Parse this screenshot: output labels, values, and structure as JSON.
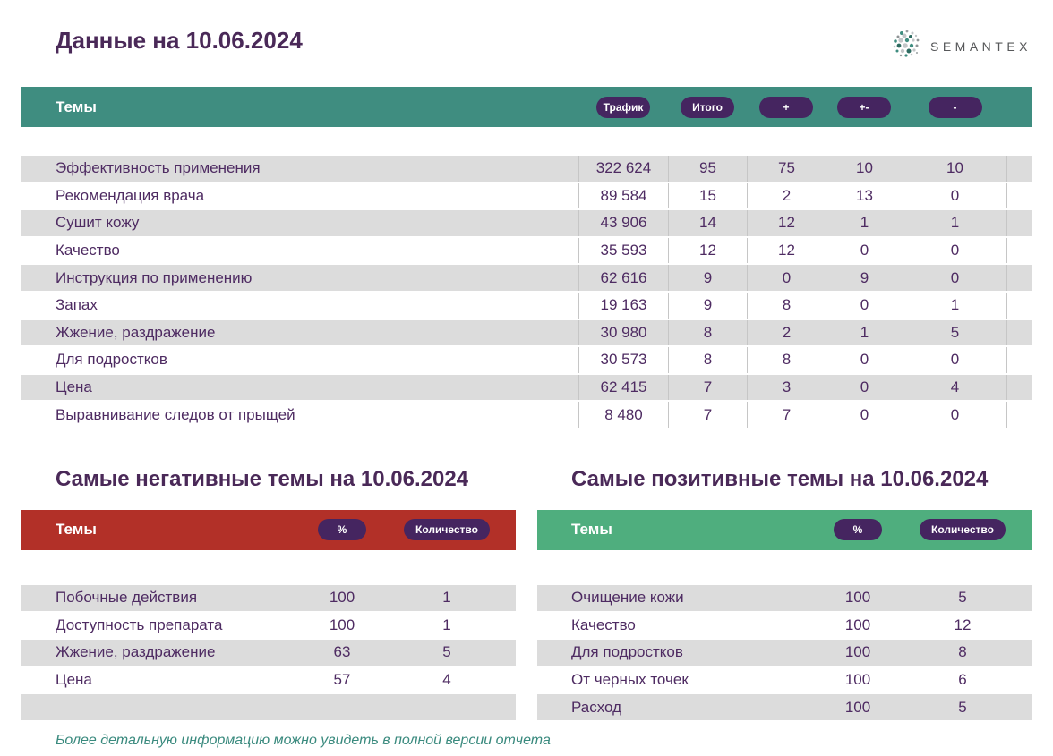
{
  "page": {
    "title": "Данные на 10.06.2024",
    "footer_note": "Более детальную информацию можно увидеть в полной версии отчета"
  },
  "logo": {
    "text": "SEMANTEX"
  },
  "main_table": {
    "header": "Темы",
    "columns": [
      "Трафик",
      "Итого",
      "+",
      "+-",
      "-"
    ],
    "rows": [
      {
        "topic": "Эффективность применения",
        "traffic": "322 624",
        "total": "95",
        "plus": "75",
        "mixed": "10",
        "minus": "10"
      },
      {
        "topic": "Рекомендация врача",
        "traffic": "89 584",
        "total": "15",
        "plus": "2",
        "mixed": "13",
        "minus": "0"
      },
      {
        "topic": "Сушит кожу",
        "traffic": "43 906",
        "total": "14",
        "plus": "12",
        "mixed": "1",
        "minus": "1"
      },
      {
        "topic": "Качество",
        "traffic": "35 593",
        "total": "12",
        "plus": "12",
        "mixed": "0",
        "minus": "0"
      },
      {
        "topic": "Инструкция по применению",
        "traffic": "62 616",
        "total": "9",
        "plus": "0",
        "mixed": "9",
        "minus": "0"
      },
      {
        "topic": "Запах",
        "traffic": "19 163",
        "total": "9",
        "plus": "8",
        "mixed": "0",
        "minus": "1"
      },
      {
        "topic": "Жжение, раздражение",
        "traffic": "30 980",
        "total": "8",
        "plus": "2",
        "mixed": "1",
        "minus": "5"
      },
      {
        "topic": "Для подростков",
        "traffic": "30 573",
        "total": "8",
        "plus": "8",
        "mixed": "0",
        "minus": "0"
      },
      {
        "topic": "Цена",
        "traffic": "62 415",
        "total": "7",
        "plus": "3",
        "mixed": "0",
        "minus": "4"
      },
      {
        "topic": "Выравнивание следов от прыщей",
        "traffic": "8 480",
        "total": "7",
        "plus": "7",
        "mixed": "0",
        "minus": "0"
      }
    ]
  },
  "negative_section": {
    "title": "Самые негативные темы на 10.06.2024",
    "header": "Темы",
    "columns": [
      "%",
      "Количество"
    ],
    "rows": [
      {
        "topic": "Побочные действия",
        "percent": "100",
        "count": "1"
      },
      {
        "topic": "Доступность препарата",
        "percent": "100",
        "count": "1"
      },
      {
        "topic": "Жжение, раздражение",
        "percent": "63",
        "count": "5"
      },
      {
        "topic": "Цена",
        "percent": "57",
        "count": "4"
      },
      {
        "topic": "",
        "percent": "",
        "count": ""
      }
    ]
  },
  "positive_section": {
    "title": "Самые позитивные темы на 10.06.2024",
    "header": "Темы",
    "columns": [
      "%",
      "Количество"
    ],
    "rows": [
      {
        "topic": "Очищение кожи",
        "percent": "100",
        "count": "5"
      },
      {
        "topic": "Качество",
        "percent": "100",
        "count": "12"
      },
      {
        "topic": "Для подростков",
        "percent": "100",
        "count": "8"
      },
      {
        "topic": "От черных точек",
        "percent": "100",
        "count": "6"
      },
      {
        "topic": "Расход",
        "percent": "100",
        "count": "5"
      }
    ]
  },
  "colors": {
    "teal_header": "#3f8d80",
    "positive_green": "#4fae7e",
    "negative_red": "#b23028",
    "pill_purple": "#452560",
    "title_purple": "#4a2958",
    "text_purple": "#4e2b62",
    "row_gray": "#dcdcdc",
    "separator_gray": "#c6c6c6",
    "footer_teal": "#3a8a7e",
    "logo_gray": "#57585a"
  }
}
